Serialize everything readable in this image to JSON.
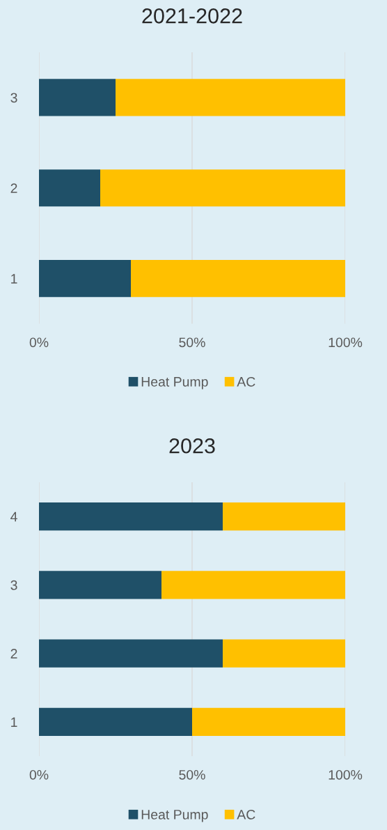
{
  "chart_data": [
    {
      "type": "bar",
      "title": "2021-2022",
      "orientation": "horizontal",
      "stacked": true,
      "categories": [
        "3",
        "2",
        "1"
      ],
      "series": [
        {
          "name": "Heat Pump",
          "color": "#1f5068",
          "values": [
            25,
            20,
            30
          ]
        },
        {
          "name": "AC",
          "color": "#ffc000",
          "values": [
            75,
            80,
            70
          ]
        }
      ],
      "xlim": [
        0,
        100
      ],
      "xticks": [
        {
          "value": 0,
          "label": "0%"
        },
        {
          "value": 50,
          "label": "50%"
        },
        {
          "value": 100,
          "label": "100%"
        }
      ],
      "grid": "x",
      "legend": "bottom"
    },
    {
      "type": "bar",
      "title": "2023",
      "orientation": "horizontal",
      "stacked": true,
      "categories": [
        "4",
        "3",
        "2",
        "1"
      ],
      "series": [
        {
          "name": "Heat Pump",
          "color": "#1f5068",
          "values": [
            60,
            40,
            60,
            50
          ]
        },
        {
          "name": "AC",
          "color": "#ffc000",
          "values": [
            40,
            60,
            40,
            50
          ]
        }
      ],
      "xlim": [
        0,
        100
      ],
      "xticks": [
        {
          "value": 0,
          "label": "0%"
        },
        {
          "value": 50,
          "label": "50%"
        },
        {
          "value": 100,
          "label": "100%"
        }
      ],
      "grid": "x",
      "legend": "bottom"
    }
  ]
}
